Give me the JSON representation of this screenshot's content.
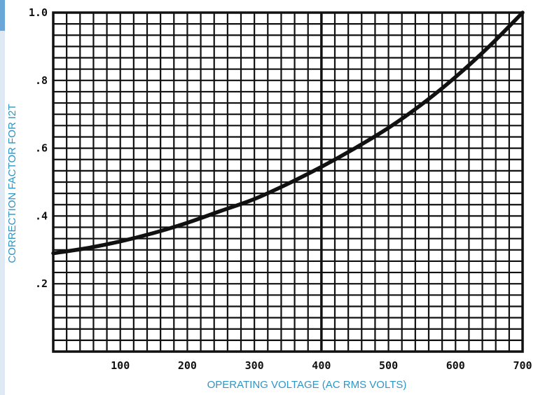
{
  "chart_data": {
    "type": "line",
    "title": "",
    "xlabel": "OPERATING VOLTAGE (AC RMS VOLTS)",
    "ylabel": "CORRECTION FACTOR FOR I2T",
    "xlim": [
      0,
      700
    ],
    "ylim": [
      0,
      1.0
    ],
    "x_ticks": [
      100,
      200,
      300,
      400,
      500,
      600,
      700
    ],
    "x_tick_labels": [
      "100",
      "200",
      "300",
      "400",
      "500",
      "600",
      "700"
    ],
    "y_ticks": [
      0.2,
      0.4,
      0.6,
      0.8,
      1.0
    ],
    "y_tick_labels": [
      ".2",
      ".4",
      ".6",
      ".8",
      "1.0"
    ],
    "grid": true,
    "series": [
      {
        "x": [
          0,
          50,
          100,
          150,
          200,
          250,
          300,
          350,
          400,
          450,
          500,
          550,
          600,
          650,
          700
        ],
        "y": [
          0.29,
          0.305,
          0.325,
          0.35,
          0.38,
          0.415,
          0.45,
          0.495,
          0.545,
          0.6,
          0.66,
          0.73,
          0.81,
          0.9,
          1.0
        ]
      }
    ]
  },
  "colors": {
    "axis_title": "#2e95c8",
    "title_fragment": "#2e6fb8",
    "curve": "#111111",
    "grid": "#111111"
  }
}
